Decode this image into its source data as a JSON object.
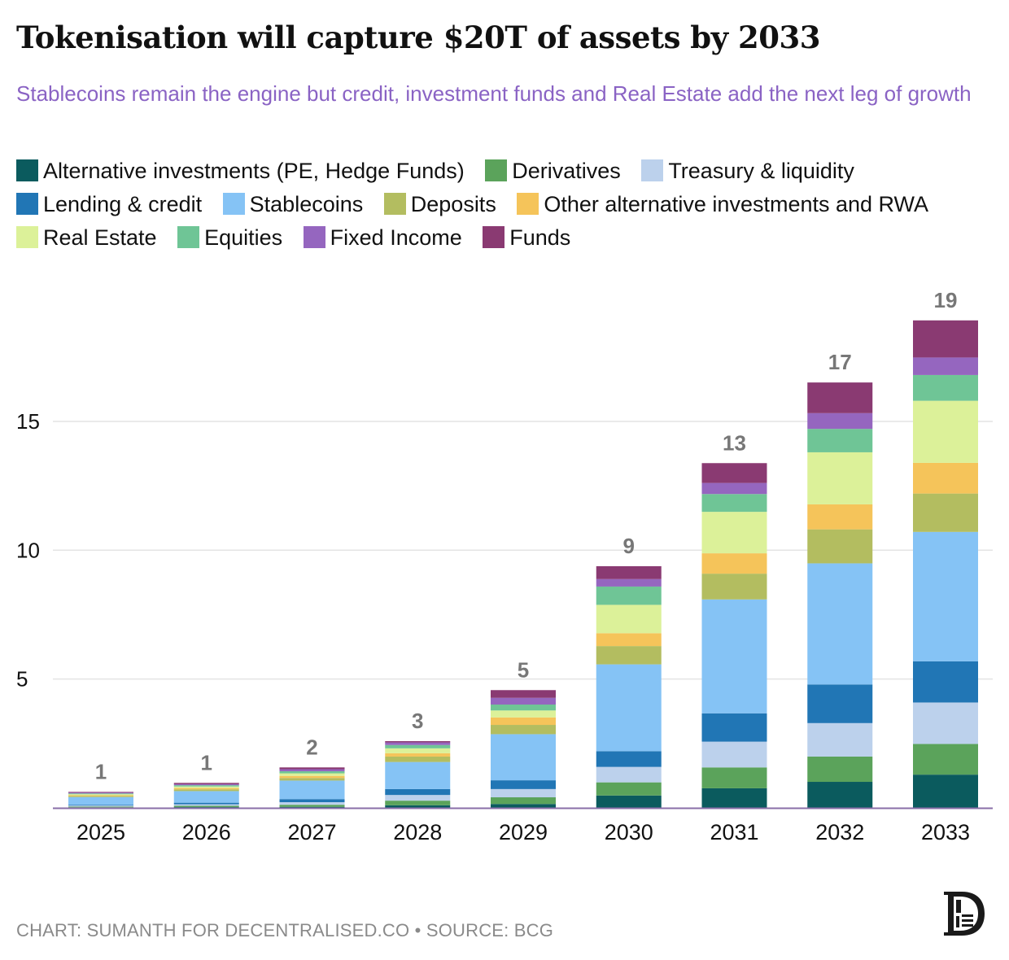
{
  "title": "Tokenisation will capture $20T of assets by 2033",
  "subtitle": "Stablecoins remain the engine but credit, investment funds and Real Estate add the next leg of growth",
  "footer": {
    "credit": "CHART: SUMANTH FOR DECENTRALISED.CO",
    "separator": "•",
    "source": "SOURCE: BCG"
  },
  "chart_data": {
    "type": "bar",
    "stacked": true,
    "title": "Tokenisation will capture $20T of assets by 2033",
    "xlabel": "",
    "ylabel": "",
    "ylim": [
      0,
      19
    ],
    "yticks": [
      5,
      10,
      15
    ],
    "grid": true,
    "legend_placement": "top",
    "categories": [
      "2025",
      "2026",
      "2027",
      "2028",
      "2029",
      "2030",
      "2031",
      "2032",
      "2033"
    ],
    "totals_labels": [
      "1",
      "1",
      "2",
      "3",
      "5",
      "9",
      "13",
      "17",
      "19"
    ],
    "series": [
      {
        "name": "Alternative investments (PE, Hedge Funds)",
        "color": "#0b5b5e",
        "values": [
          0.02,
          0.03,
          0.04,
          0.1,
          0.15,
          0.48,
          0.76,
          1.01,
          1.29
        ]
      },
      {
        "name": "Derivatives",
        "color": "#5ba35b",
        "values": [
          0.03,
          0.05,
          0.08,
          0.18,
          0.26,
          0.51,
          0.81,
          0.98,
          1.19
        ]
      },
      {
        "name": "Treasury & liquidity",
        "color": "#bcd1ec",
        "values": [
          0.04,
          0.06,
          0.1,
          0.22,
          0.32,
          0.6,
          1.0,
          1.3,
          1.61
        ]
      },
      {
        "name": "Lending & credit",
        "color": "#2176b5",
        "values": [
          0.03,
          0.06,
          0.12,
          0.23,
          0.34,
          0.61,
          1.1,
          1.5,
          1.6
        ]
      },
      {
        "name": "Stablecoins",
        "color": "#85c3f5",
        "values": [
          0.3,
          0.45,
          0.72,
          1.05,
          1.79,
          3.37,
          4.42,
          4.7,
          5.02
        ]
      },
      {
        "name": "Deposits",
        "color": "#b3bd60",
        "values": [
          0.04,
          0.07,
          0.1,
          0.21,
          0.36,
          0.71,
          1.0,
          1.32,
          1.49
        ]
      },
      {
        "name": "Other alternative investments and RWA",
        "color": "#f5c45a",
        "values": [
          0.03,
          0.05,
          0.08,
          0.13,
          0.29,
          0.5,
          0.79,
          0.97,
          1.19
        ]
      },
      {
        "name": "Real Estate",
        "color": "#dcf199",
        "values": [
          0.04,
          0.06,
          0.1,
          0.19,
          0.27,
          1.1,
          1.61,
          2.02,
          2.41
        ]
      },
      {
        "name": "Equities",
        "color": "#6fc596",
        "values": [
          0.03,
          0.05,
          0.08,
          0.13,
          0.23,
          0.71,
          0.69,
          0.91,
          1.0
        ]
      },
      {
        "name": "Fixed Income",
        "color": "#9566bf",
        "values": [
          0.03,
          0.04,
          0.08,
          0.1,
          0.26,
          0.29,
          0.43,
          0.61,
          0.68
        ]
      },
      {
        "name": "Funds",
        "color": "#8a3a72",
        "values": [
          0.03,
          0.05,
          0.07,
          0.05,
          0.3,
          0.5,
          0.77,
          1.19,
          1.44
        ]
      }
    ]
  }
}
